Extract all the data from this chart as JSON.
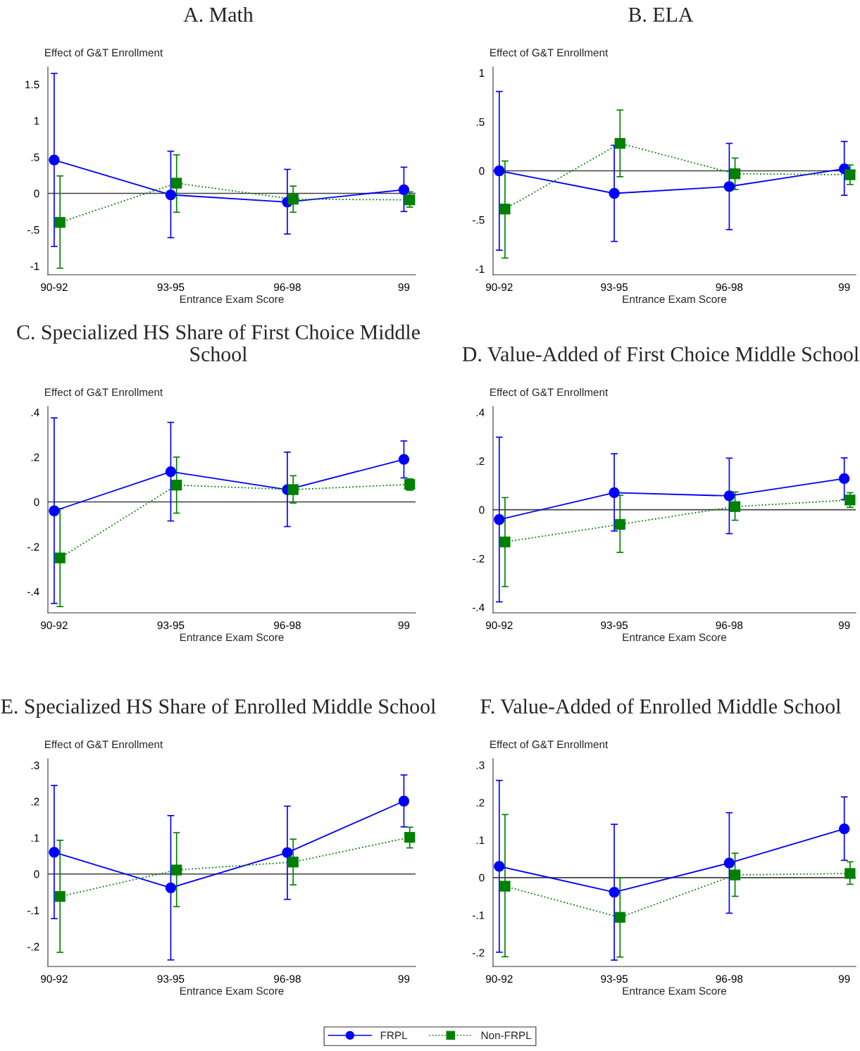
{
  "chart_data": [
    {
      "type": "line",
      "title": "A. Math",
      "ylabel": "Effect of G&T Enrollment",
      "xlabel": "Entrance Exam Score",
      "categories": [
        "90-92",
        "93-95",
        "96-98",
        "99"
      ],
      "legend": "bottom",
      "ylim": [
        -1.12,
        1.74
      ],
      "yticks": [
        {
          "value": -1,
          "label": "-1"
        },
        {
          "value": -0.5,
          "label": "-.5"
        },
        0,
        {
          "value": 0.5,
          "label": ".5"
        },
        1,
        1.5
      ],
      "ref_lines": [
        {
          "axis": "y",
          "value": 0,
          "color": "#404040"
        }
      ],
      "series": [
        {
          "name": "FRPL",
          "color": "#0000ff",
          "marker": "circle",
          "line_style": "solid",
          "values": [
            0.46,
            -0.02,
            -0.12,
            0.05
          ],
          "errors": [
            [
              -0.73,
              1.65
            ],
            [
              -0.61,
              0.58
            ],
            [
              -0.56,
              0.33
            ],
            [
              -0.25,
              0.36
            ]
          ]
        },
        {
          "name": "Non-FRPL",
          "color": "#008000",
          "marker": "square",
          "line_style": "dotted",
          "values": [
            -0.4,
            0.14,
            -0.08,
            -0.09
          ],
          "errors": [
            [
              -1.03,
              0.24
            ],
            [
              -0.26,
              0.53
            ],
            [
              -0.26,
              0.1
            ],
            [
              -0.19,
              0.02
            ]
          ]
        }
      ]
    },
    {
      "type": "line",
      "title": "B. ELA",
      "ylabel": "Effect of G&T Enrollment",
      "xlabel": "Entrance Exam Score",
      "categories": [
        "90-92",
        "93-95",
        "96-98",
        "99"
      ],
      "ylim": [
        -1.06,
        1.06
      ],
      "yticks": [
        {
          "value": -1,
          "label": "-1"
        },
        {
          "value": -0.5,
          "label": "-.5"
        },
        0,
        {
          "value": 0.5,
          "label": ".5"
        },
        1
      ],
      "ref_lines": [
        {
          "axis": "y",
          "value": 0,
          "color": "#404040"
        }
      ],
      "series": [
        {
          "color": "#0000ff",
          "marker": "circle",
          "line_style": "solid",
          "values": [
            0.0,
            -0.23,
            -0.16,
            0.02
          ],
          "errors": [
            [
              -0.81,
              0.81
            ],
            [
              -0.72,
              0.26
            ],
            [
              -0.6,
              0.28
            ],
            [
              -0.25,
              0.3
            ]
          ]
        },
        {
          "color": "#008000",
          "marker": "square",
          "line_style": "dotted",
          "values": [
            -0.39,
            0.28,
            -0.03,
            -0.04
          ],
          "errors": [
            [
              -0.89,
              0.1
            ],
            [
              -0.06,
              0.62
            ],
            [
              -0.19,
              0.13
            ],
            [
              -0.14,
              0.06
            ]
          ]
        }
      ]
    },
    {
      "type": "line",
      "title": "C. Specialized HS Share of First Choice Middle School",
      "ylabel": "Effect of G&T Enrollment",
      "xlabel": "Entrance Exam Score",
      "categories": [
        "90-92",
        "93-95",
        "96-98",
        "99"
      ],
      "ylim": [
        -0.495,
        0.426
      ],
      "yticks": [
        {
          "value": -0.4,
          "label": "-.4"
        },
        {
          "value": -0.2,
          "label": "-.2"
        },
        0,
        {
          "value": 0.2,
          "label": ".2"
        },
        {
          "value": 0.4,
          "label": ".4"
        }
      ],
      "ref_lines": [
        {
          "axis": "y",
          "value": 0,
          "color": "#404040"
        }
      ],
      "series": [
        {
          "color": "#0000ff",
          "marker": "circle",
          "line_style": "solid",
          "values": [
            -0.04,
            0.135,
            0.055,
            0.19
          ],
          "errors": [
            [
              -0.453,
              0.375
            ],
            [
              -0.085,
              0.355
            ],
            [
              -0.11,
              0.222
            ],
            [
              0.107,
              0.272
            ]
          ]
        },
        {
          "color": "#008000",
          "marker": "square",
          "line_style": "dotted",
          "values": [
            -0.25,
            0.075,
            0.055,
            0.078
          ],
          "errors": [
            [
              -0.467,
              -0.03
            ],
            [
              -0.05,
              0.2
            ],
            [
              -0.005,
              0.117
            ],
            [
              0.052,
              0.103
            ]
          ]
        }
      ]
    },
    {
      "type": "line",
      "title": "D. Value-Added of First Choice Middle School",
      "ylabel": "Effect of G&T Enrollment",
      "xlabel": "Entrance Exam Score",
      "categories": [
        "90-92",
        "93-95",
        "96-98",
        "99"
      ],
      "ylim": [
        -0.423,
        0.424
      ],
      "yticks": [
        {
          "value": -0.4,
          "label": "-.4"
        },
        {
          "value": -0.2,
          "label": "-.2"
        },
        0,
        {
          "value": 0.2,
          "label": ".2"
        },
        {
          "value": 0.4,
          "label": ".4"
        }
      ],
      "ref_lines": [
        {
          "axis": "y",
          "value": 0,
          "color": "#404040"
        }
      ],
      "series": [
        {
          "color": "#0000ff",
          "marker": "circle",
          "line_style": "solid",
          "values": [
            -0.04,
            0.07,
            0.057,
            0.128
          ],
          "errors": [
            [
              -0.378,
              0.298
            ],
            [
              -0.087,
              0.23
            ],
            [
              -0.098,
              0.212
            ],
            [
              0.042,
              0.213
            ]
          ]
        },
        {
          "color": "#008000",
          "marker": "square",
          "line_style": "dotted",
          "values": [
            -0.132,
            -0.06,
            0.013,
            0.04
          ],
          "errors": [
            [
              -0.315,
              0.05
            ],
            [
              -0.175,
              0.06
            ],
            [
              -0.043,
              0.073
            ],
            [
              0.01,
              0.07
            ]
          ]
        }
      ]
    },
    {
      "type": "line",
      "title": "E. Specialized HS Share of Enrolled Middle School",
      "ylabel": "Effect of G&T Enrollment",
      "xlabel": "Entrance Exam Score",
      "categories": [
        "90-92",
        "93-95",
        "96-98",
        "99"
      ],
      "ylim": [
        -0.255,
        0.318
      ],
      "yticks": [
        {
          "value": -0.2,
          "label": "-.2"
        },
        {
          "value": -0.1,
          "label": "-.1"
        },
        0,
        {
          "value": 0.1,
          "label": ".1"
        },
        {
          "value": 0.2,
          "label": ".2"
        },
        {
          "value": 0.3,
          "label": ".3"
        }
      ],
      "ref_lines": [
        {
          "axis": "y",
          "value": 0,
          "color": "#404040"
        }
      ],
      "series": [
        {
          "color": "#0000ff",
          "marker": "circle",
          "line_style": "solid",
          "values": [
            0.06,
            -0.038,
            0.059,
            0.201
          ],
          "errors": [
            [
              -0.123,
              0.244
            ],
            [
              -0.237,
              0.161
            ],
            [
              -0.07,
              0.187
            ],
            [
              0.13,
              0.273
            ]
          ]
        },
        {
          "color": "#008000",
          "marker": "square",
          "line_style": "dotted",
          "values": [
            -0.062,
            0.011,
            0.033,
            0.101
          ],
          "errors": [
            [
              -0.216,
              0.093
            ],
            [
              -0.09,
              0.114
            ],
            [
              -0.03,
              0.096
            ],
            [
              0.072,
              0.129
            ]
          ]
        }
      ]
    },
    {
      "type": "line",
      "title": "F. Value-Added of Enrolled Middle School",
      "ylabel": "Effect of G&T Enrollment",
      "xlabel": "Entrance Exam Score",
      "categories": [
        "90-92",
        "93-95",
        "96-98",
        "99"
      ],
      "ylim": [
        -0.237,
        0.317
      ],
      "yticks": [
        {
          "value": -0.2,
          "label": "-.2"
        },
        {
          "value": -0.1,
          "label": "-.1"
        },
        0,
        {
          "value": 0.1,
          "label": ".1"
        },
        {
          "value": 0.2,
          "label": ".2"
        },
        {
          "value": 0.3,
          "label": ".3"
        }
      ],
      "ref_lines": [
        {
          "axis": "y",
          "value": 0,
          "color": "#404040"
        }
      ],
      "series": [
        {
          "color": "#0000ff",
          "marker": "circle",
          "line_style": "solid",
          "values": [
            0.03,
            -0.039,
            0.039,
            0.13
          ],
          "errors": [
            [
              -0.199,
              0.259
            ],
            [
              -0.22,
              0.142
            ],
            [
              -0.095,
              0.173
            ],
            [
              0.046,
              0.215
            ]
          ]
        },
        {
          "color": "#008000",
          "marker": "square",
          "line_style": "dotted",
          "values": [
            -0.023,
            -0.106,
            0.007,
            0.011
          ],
          "errors": [
            [
              -0.211,
              0.168
            ],
            [
              -0.212,
              0.0
            ],
            [
              -0.05,
              0.065
            ],
            [
              -0.018,
              0.042
            ]
          ]
        }
      ]
    }
  ]
}
